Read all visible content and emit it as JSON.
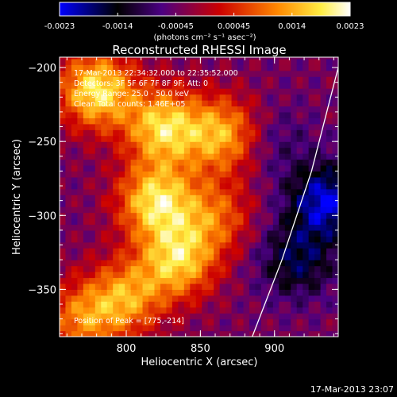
{
  "chart_data": {
    "type": "heatmap",
    "title": "Reconstructed RHESSI Image",
    "xlabel": "Heliocentric X (arcsec)",
    "ylabel": "Heliocentric Y (arcsec)",
    "xlim": [
      755,
      943
    ],
    "ylim": [
      -382,
      -193
    ],
    "x_ticks": [
      800,
      850,
      900
    ],
    "y_ticks": [
      -200,
      -250,
      -300,
      -350
    ],
    "colorbar": {
      "min": -0.0023,
      "max": 0.0023,
      "ticks": [
        "-0.0023",
        "-0.0014",
        "-0.00045",
        "0.00045",
        "0.0014",
        "0.0023"
      ],
      "units_label": "(photons cm⁻² s⁻¹ asec⁻²)",
      "colormap": [
        "#0000ff",
        "#000000",
        "#4b0082",
        "#cc0000",
        "#ff8800",
        "#ffffff"
      ]
    },
    "annotations": {
      "time": "17-Mar-2013 22:34:32.000 to 22:35:52.000",
      "detectors": "Detectors: 3F 5F 6F 7F 8F 9F; Att: 0",
      "energy": "Energy Range: 25.0 - 50.0 keV",
      "method": "Clean       Total counts: 1.46E+05",
      "peak": "Position of Peak = [775,-214]"
    },
    "limb_curve": [
      [
        885,
        -382
      ],
      [
        905,
        -330
      ],
      [
        925,
        -270
      ],
      [
        943,
        -200
      ]
    ],
    "emission_sources": [
      {
        "x": 780,
        "y": -215,
        "value": 0.0023
      },
      {
        "x": 825,
        "y": -240,
        "value": 0.0021
      },
      {
        "x": 820,
        "y": -290,
        "value": 0.0022
      },
      {
        "x": 835,
        "y": -330,
        "value": 0.002
      },
      {
        "x": 800,
        "y": -355,
        "value": 0.0016
      },
      {
        "x": 770,
        "y": -370,
        "value": 0.0014
      },
      {
        "x": 865,
        "y": -245,
        "value": 0.0018
      },
      {
        "x": 860,
        "y": -300,
        "value": 0.0012
      },
      {
        "x": 900,
        "y": -250,
        "value": -0.0005
      },
      {
        "x": 915,
        "y": -330,
        "value": -0.0012
      },
      {
        "x": 935,
        "y": -290,
        "value": -0.0018
      }
    ]
  },
  "footer": {
    "timestamp": "17-Mar-2013 23:07"
  }
}
